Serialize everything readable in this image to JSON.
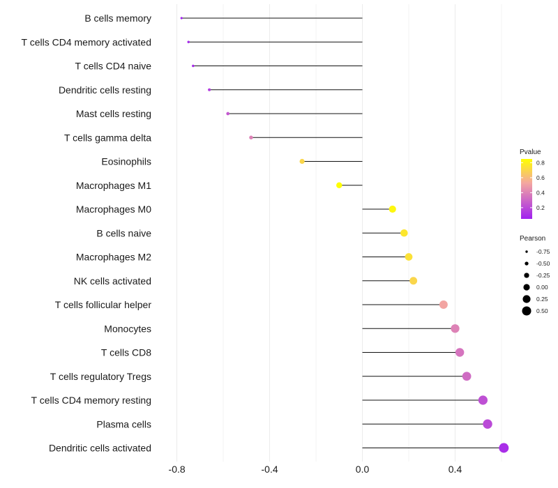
{
  "chart_data": {
    "type": "lollipop",
    "title": "",
    "xlabel": "",
    "ylabel": "",
    "xlim": [
      -0.88,
      0.6
    ],
    "xticks": [
      -0.8,
      -0.4,
      0.0,
      0.4
    ],
    "xtick_labels": [
      "-0.8",
      "-0.4",
      "0.0",
      "0.4"
    ],
    "grid": true,
    "categories": [
      "B cells memory",
      "T cells CD4 memory activated",
      "T cells CD4 naive",
      "Dendritic cells resting",
      "Mast cells resting",
      "T cells gamma delta",
      "Eosinophils",
      "Macrophages M1",
      "Macrophages M0",
      "B cells naive",
      "Macrophages M2",
      "NK cells activated",
      "T cells follicular helper",
      "Monocytes",
      "T cells CD8",
      "T cells regulatory  Tregs ",
      "T cells CD4 memory resting",
      "Plasma cells",
      "Dendritic cells activated"
    ],
    "pearson": [
      -0.78,
      -0.75,
      -0.73,
      -0.66,
      -0.58,
      -0.48,
      -0.26,
      -0.1,
      0.13,
      0.18,
      0.2,
      0.22,
      0.35,
      0.4,
      0.42,
      0.45,
      0.52,
      0.54,
      0.61
    ],
    "pvalue": [
      0.05,
      0.08,
      0.09,
      0.15,
      0.25,
      0.4,
      0.7,
      0.85,
      0.82,
      0.76,
      0.74,
      0.7,
      0.52,
      0.4,
      0.35,
      0.32,
      0.22,
      0.2,
      0.1
    ],
    "legend_color": {
      "title": "Pvalue",
      "labels": [
        "0.8",
        "0.6",
        "0.4",
        "0.2"
      ],
      "values": [
        0.8,
        0.6,
        0.4,
        0.2
      ],
      "range": [
        0.05,
        0.85
      ],
      "colors": [
        "#A020F0",
        "#F4A7A0",
        "#FFFF00"
      ],
      "placement": "right"
    },
    "legend_size": {
      "title": "Pearson",
      "labels": [
        "-0.75",
        "-0.50",
        "-0.25",
        "0.00",
        "0.25",
        "0.50"
      ],
      "values": [
        -0.75,
        -0.5,
        -0.25,
        0.0,
        0.25,
        0.5
      ],
      "placement": "right"
    }
  }
}
